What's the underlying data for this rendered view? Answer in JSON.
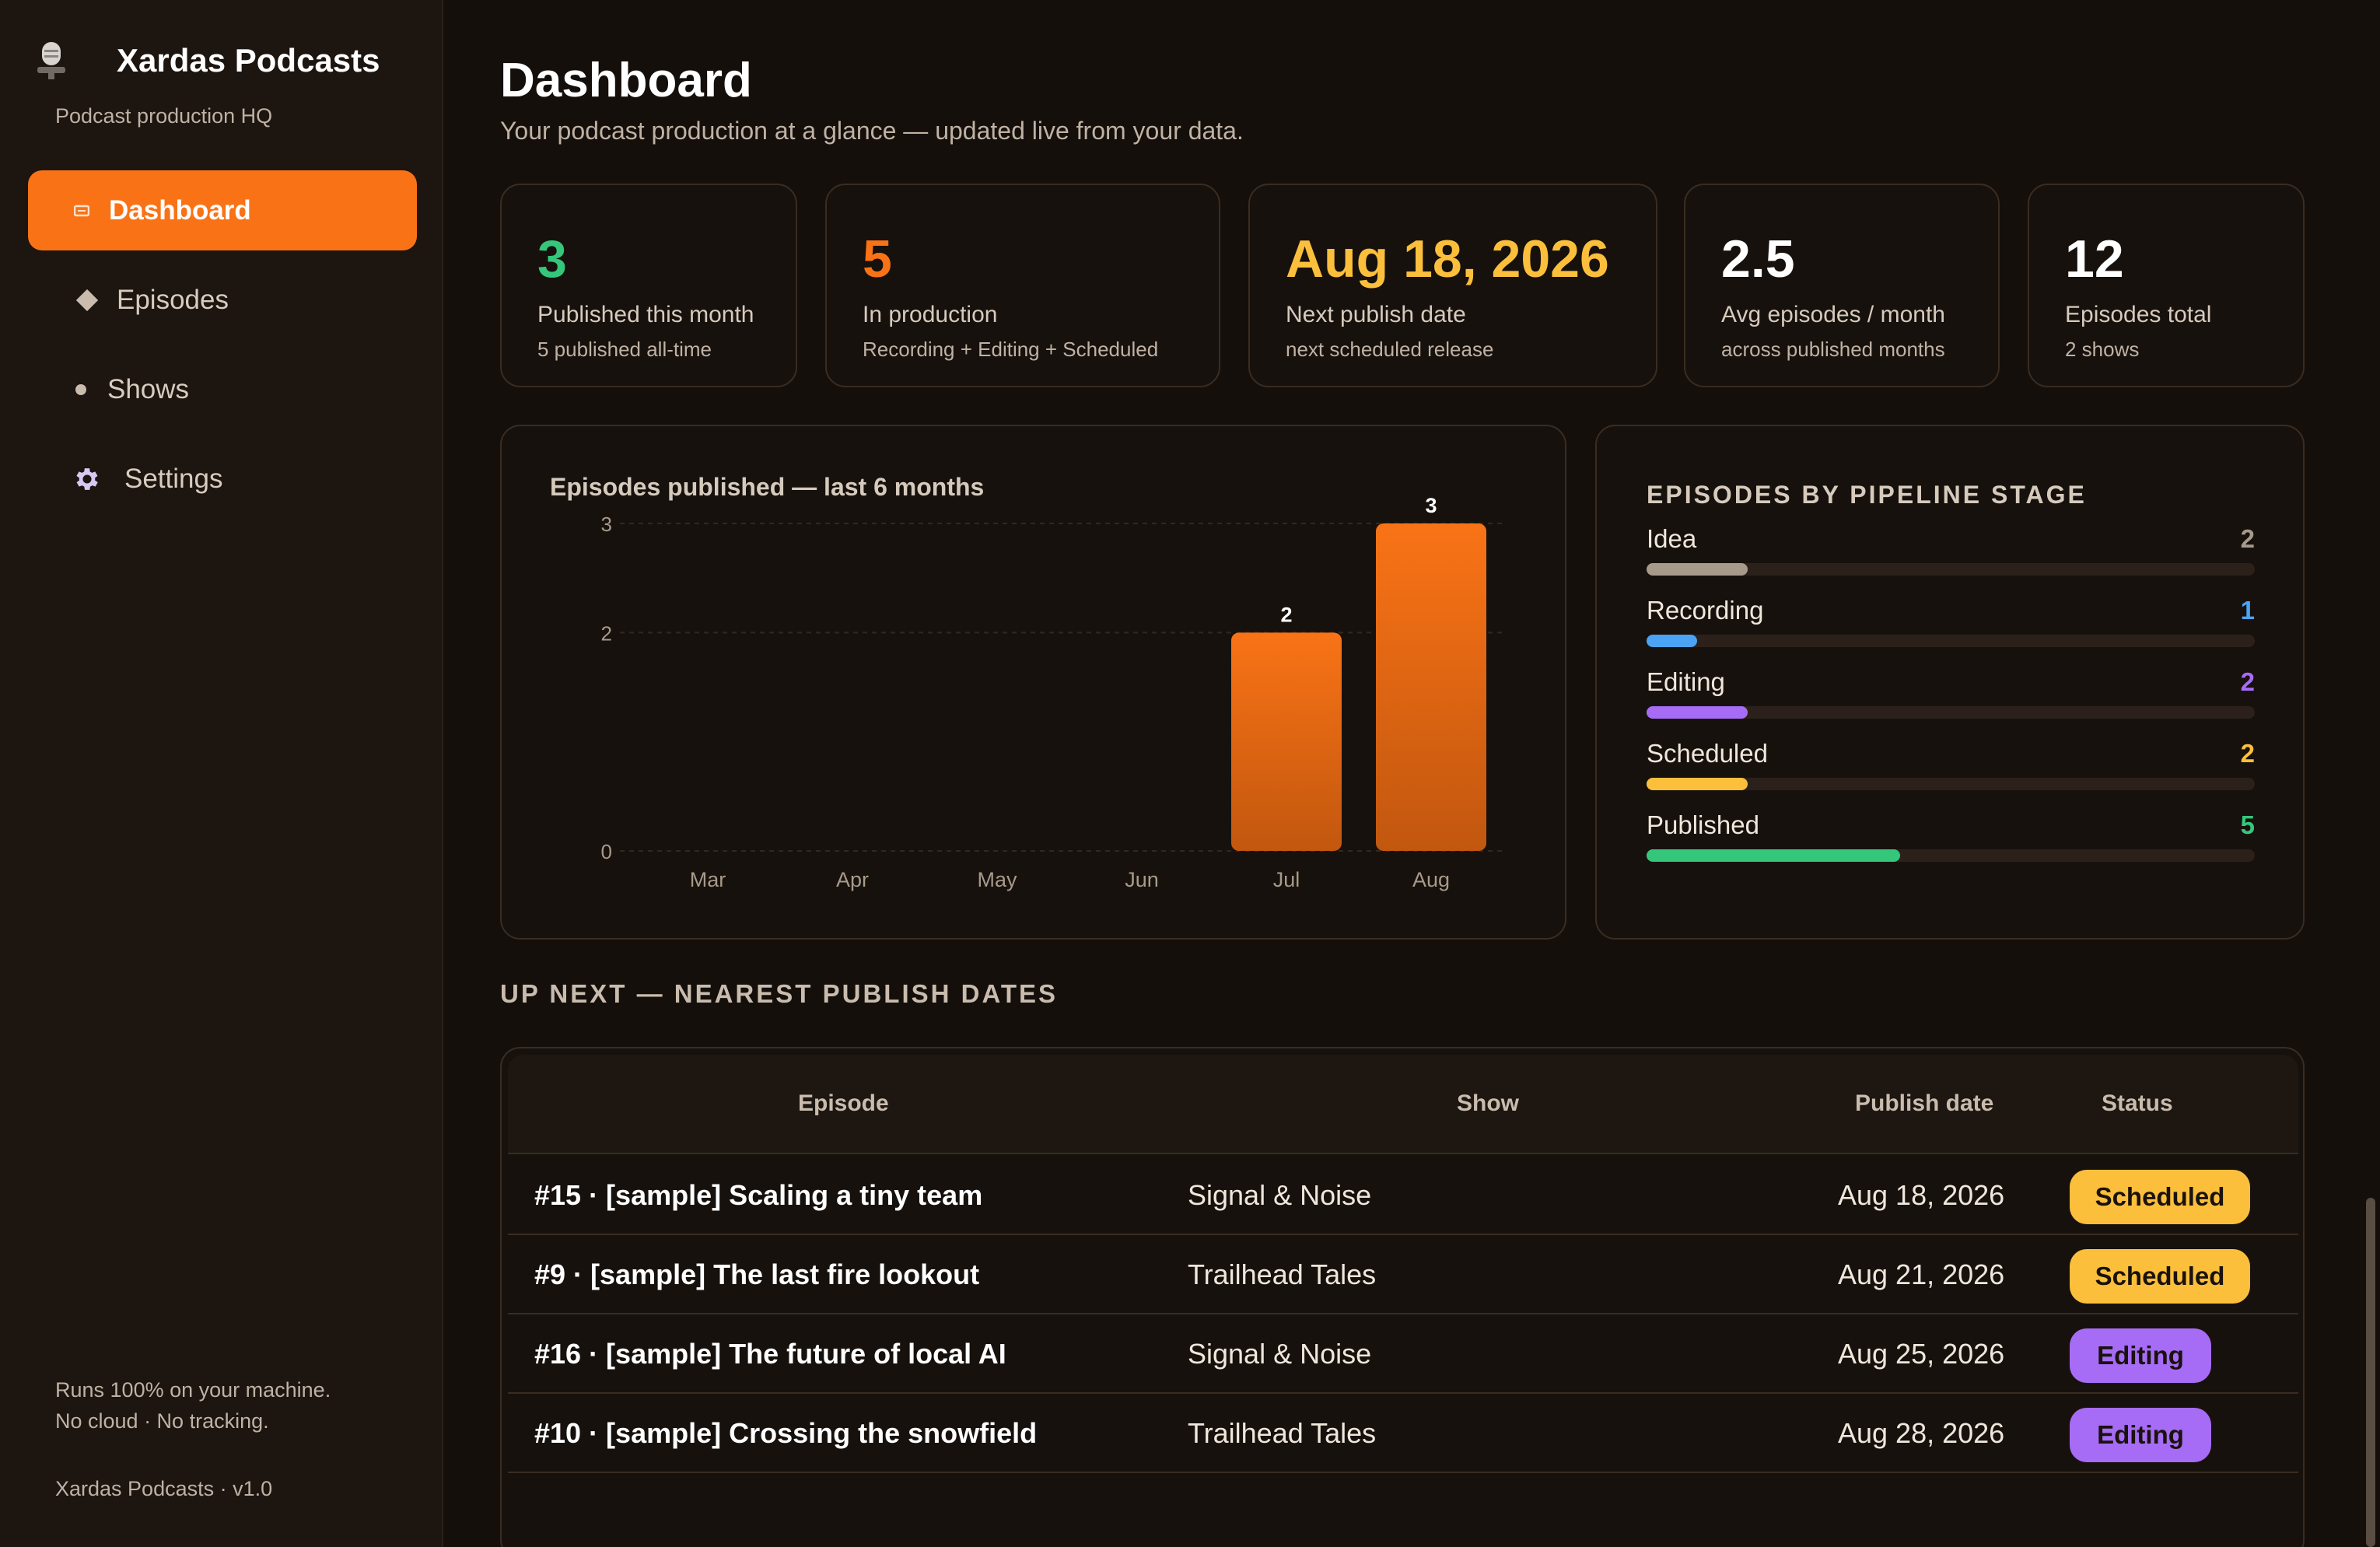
{
  "app": {
    "title": "Xardas Podcasts",
    "subtitle": "Podcast production HQ",
    "icon": "microphone-icon"
  },
  "sidebar": {
    "items": [
      {
        "label": "Dashboard",
        "icon": "dashboard-icon",
        "active": true
      },
      {
        "label": "Episodes",
        "icon": "diamond-icon",
        "active": false
      },
      {
        "label": "Shows",
        "icon": "dot-icon",
        "active": false
      },
      {
        "label": "Settings",
        "icon": "gear-icon",
        "active": false
      }
    ],
    "footer_line1": "Runs 100% on your machine.",
    "footer_line2": "No cloud · No tracking.",
    "version": "Xardas Podcasts · v1.0"
  },
  "header": {
    "title": "Dashboard",
    "subtitle": "Your podcast production at a glance — updated live from your data."
  },
  "stats": [
    {
      "value": "3",
      "label": "Published this month",
      "sub": "5 published all-time",
      "color": "#34c77b"
    },
    {
      "value": "5",
      "label": "In production",
      "sub": "Recording + Editing + Scheduled",
      "color": "#f97316"
    },
    {
      "value": "Aug 18, 2026",
      "label": "Next publish date",
      "sub": "next scheduled release",
      "color": "#fbbf3c"
    },
    {
      "value": "2.5",
      "label": "Avg episodes / month",
      "sub": "across published months",
      "color": "#ffffff"
    },
    {
      "value": "12",
      "label": "Episodes total",
      "sub": "2 shows",
      "color": "#ffffff"
    }
  ],
  "chart_data": {
    "type": "bar",
    "title": "Episodes published — last 6 months",
    "categories": [
      "Mar",
      "Apr",
      "May",
      "Jun",
      "Jul",
      "Aug"
    ],
    "values": [
      0,
      0,
      0,
      0,
      2,
      3
    ],
    "y_ticks": [
      "0",
      "2",
      "3"
    ],
    "ylim": [
      0,
      3
    ],
    "grid": true,
    "bar_color": "#f97316",
    "xlabel": "",
    "ylabel": ""
  },
  "pipeline": {
    "title": "EPISODES BY PIPELINE STAGE",
    "max": 12,
    "stages": [
      {
        "name": "Idea",
        "count": 2,
        "color": "#a89a8a"
      },
      {
        "name": "Recording",
        "count": 1,
        "color": "#4aa3f5"
      },
      {
        "name": "Editing",
        "count": 2,
        "color": "#a66cf5"
      },
      {
        "name": "Scheduled",
        "count": 2,
        "color": "#fbbf3c"
      },
      {
        "name": "Published",
        "count": 5,
        "color": "#34c77b"
      }
    ]
  },
  "upnext": {
    "title": "UP NEXT — NEAREST PUBLISH DATES",
    "columns": {
      "episode": "Episode",
      "show": "Show",
      "date": "Publish date",
      "status": "Status"
    },
    "rows": [
      {
        "episode": "#15 · [sample] Scaling a tiny team",
        "show": "Signal & Noise",
        "date": "Aug 18, 2026",
        "status": "Scheduled"
      },
      {
        "episode": "#9 · [sample] The last fire lookout",
        "show": "Trailhead Tales",
        "date": "Aug 21, 2026",
        "status": "Scheduled"
      },
      {
        "episode": "#16 · [sample] The future of local AI",
        "show": "Signal & Noise",
        "date": "Aug 25, 2026",
        "status": "Editing"
      },
      {
        "episode": "#10 · [sample] Crossing the snowfield",
        "show": "Trailhead Tales",
        "date": "Aug 28, 2026",
        "status": "Editing"
      }
    ],
    "status_colors": {
      "Scheduled": "#fbbf3c",
      "Editing": "#a66cf5"
    }
  }
}
